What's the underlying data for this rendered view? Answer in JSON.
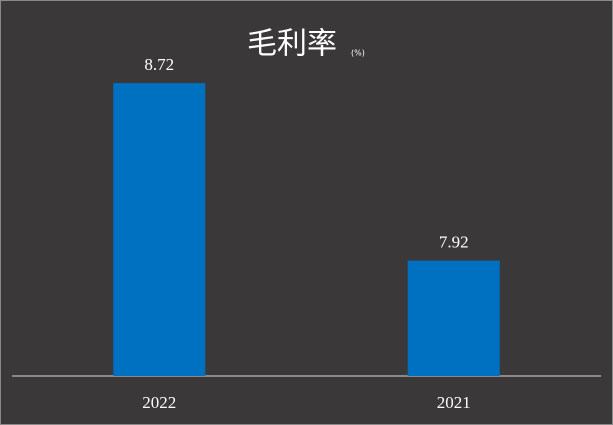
{
  "chart_data": {
    "type": "bar",
    "title": "毛利率",
    "unit": "(%)",
    "categories": [
      "2022",
      "2021"
    ],
    "values": [
      8.72,
      7.92
    ],
    "color": "#0070c0",
    "ylim": [
      7.4,
      9.0
    ]
  }
}
